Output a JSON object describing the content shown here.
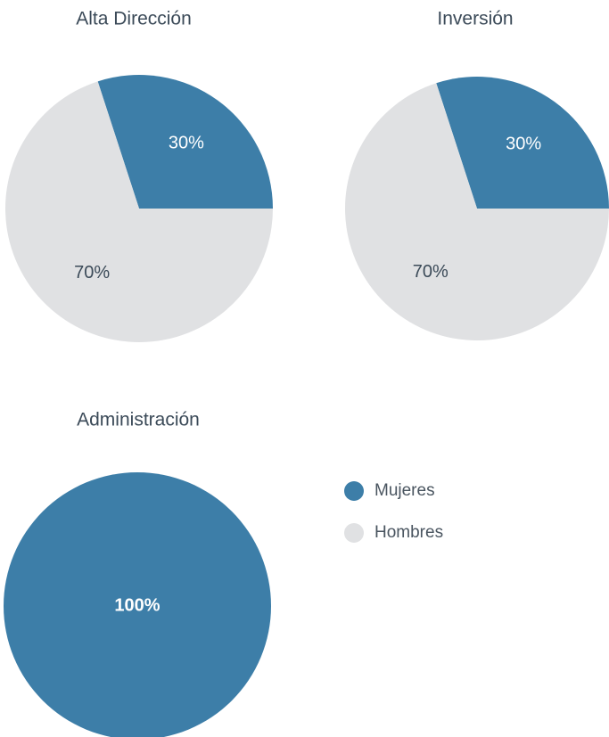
{
  "chart_data": [
    {
      "type": "pie",
      "title": "Alta Dirección",
      "categories": [
        "Mujeres",
        "Hombres"
      ],
      "values": [
        30,
        70
      ],
      "value_labels": [
        "30%",
        "70%"
      ],
      "colors": [
        "#3d7ea8",
        "#e0e1e3"
      ]
    },
    {
      "type": "pie",
      "title": "Inversión",
      "categories": [
        "Mujeres",
        "Hombres"
      ],
      "values": [
        30,
        70
      ],
      "value_labels": [
        "30%",
        "70%"
      ],
      "colors": [
        "#3d7ea8",
        "#e0e1e3"
      ]
    },
    {
      "type": "pie",
      "title": "Administración",
      "categories": [
        "Mujeres",
        "Hombres"
      ],
      "values": [
        100,
        0
      ],
      "value_labels": [
        "100%",
        null
      ],
      "colors": [
        "#3d7ea8",
        "#e0e1e3"
      ]
    }
  ]
}
